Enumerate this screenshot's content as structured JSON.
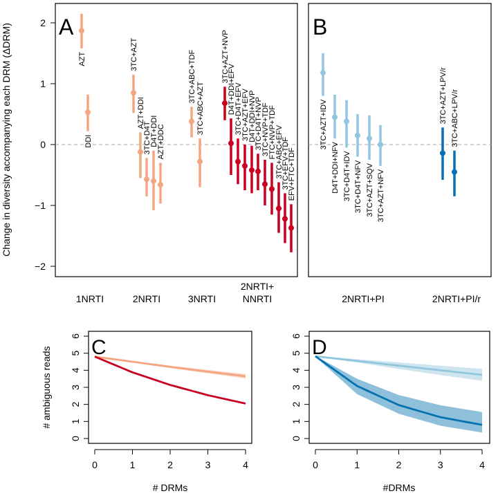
{
  "chart_data": [
    {
      "type": "scatter",
      "panel": "A",
      "ylabel": "Change in diversity accompanying each DRM (ΔDRM)",
      "ylim": [
        -2.2,
        2.25
      ],
      "yticks": [
        -2,
        -1,
        0,
        1,
        2
      ],
      "reference_line": 0,
      "groups": [
        {
          "label": "1NRTI",
          "color": "#f4a582",
          "points": [
            {
              "name": "AZT",
              "y": 1.87,
              "lo": 1.58,
              "hi": 2.15
            },
            {
              "name": "DDI",
              "y": 0.53,
              "lo": 0.22,
              "hi": 0.82
            }
          ]
        },
        {
          "label": "2NRTI",
          "color": "#f4a582",
          "points": [
            {
              "name": "3TC+AZT",
              "y": 0.85,
              "lo": 0.52,
              "hi": 1.15
            },
            {
              "name": "AZT+DDI",
              "y": -0.12,
              "lo": -0.55,
              "hi": 0.2
            },
            {
              "name": "3TC+D4T",
              "y": -0.57,
              "lo": -0.85,
              "hi": -0.22
            },
            {
              "name": "D4T+DDI",
              "y": -0.6,
              "lo": -1.08,
              "hi": -0.1
            },
            {
              "name": "AZT+DDC",
              "y": -0.66,
              "lo": -0.97,
              "hi": -0.3
            }
          ]
        },
        {
          "label": "3NRTI",
          "color": "#f4a582",
          "points": [
            {
              "name": "3TC+ABC+TDF",
              "y": 0.38,
              "lo": 0.12,
              "hi": 0.62
            },
            {
              "name": "3TC+ABC+AZT",
              "y": -0.28,
              "lo": -0.7,
              "hi": 0.1
            }
          ]
        },
        {
          "label": "2NRTI+\nNNRTI",
          "label_lines": [
            "2NRTI+",
            "NNRTI"
          ],
          "color": "#ca0020",
          "points": [
            {
              "name": "3TC+AZT+NVP",
              "y": 0.68,
              "lo": 0.4,
              "hi": 0.95
            },
            {
              "name": "D4T+DDI+EFV",
              "y": 0.02,
              "lo": -0.5,
              "hi": 0.43
            },
            {
              "name": "3TC+D4T+EFV",
              "y": -0.28,
              "lo": -0.65,
              "hi": 0.1
            },
            {
              "name": "3TC+AZT+EFV",
              "y": -0.35,
              "lo": -0.75,
              "hi": 0.0
            },
            {
              "name": "D4T+DDI+NVP",
              "y": -0.42,
              "lo": -0.8,
              "hi": -0.02
            },
            {
              "name": "3TC+D4T+NVP",
              "y": -0.44,
              "lo": -0.75,
              "hi": -0.15
            },
            {
              "name": "3TC+NVP+TDF",
              "y": -0.65,
              "lo": -1.0,
              "hi": -0.25
            },
            {
              "name": "FTC+NVP+TDF",
              "y": -0.73,
              "lo": -1.15,
              "hi": -0.3
            },
            {
              "name": "3TC+ABC+EFV",
              "y": -1.05,
              "lo": -1.45,
              "hi": -0.62
            },
            {
              "name": "3TC+EFV+TDF",
              "y": -1.22,
              "lo": -1.62,
              "hi": -0.8
            },
            {
              "name": "EFV+FTC+TDF",
              "y": -1.37,
              "lo": -1.77,
              "hi": -0.98
            }
          ]
        }
      ]
    },
    {
      "type": "scatter",
      "panel": "B",
      "ylim": [
        -2.2,
        2.25
      ],
      "reference_line": 0,
      "groups": [
        {
          "label": "2NRTI+PI",
          "color": "#92c5de",
          "points": [
            {
              "name": "3TC+AZT+IDV",
              "y": 1.18,
              "lo": 0.8,
              "hi": 1.5
            },
            {
              "name": "D4T+DDI+NFV",
              "y": 0.45,
              "lo": 0.1,
              "hi": 0.82
            },
            {
              "name": "3TC+D4T+IDV",
              "y": 0.38,
              "lo": -0.05,
              "hi": 0.73
            },
            {
              "name": "3TC+D4T+NFV",
              "y": 0.15,
              "lo": -0.2,
              "hi": 0.5
            },
            {
              "name": "3TC+AZT+SQV",
              "y": 0.1,
              "lo": -0.25,
              "hi": 0.48
            },
            {
              "name": "3TC+AZT+NFV",
              "y": 0.0,
              "lo": -0.35,
              "hi": 0.32
            }
          ]
        },
        {
          "label": "2NRTI+PI/r",
          "color": "#0571b0",
          "points": [
            {
              "name": "3TC+AZT+LPV/r",
              "y": -0.14,
              "lo": -0.58,
              "hi": 0.28
            },
            {
              "name": "3TC+ABC+LPV/r",
              "y": -0.45,
              "lo": -0.85,
              "hi": -0.1
            }
          ]
        }
      ]
    },
    {
      "type": "line",
      "panel": "C",
      "xlabel": "# DRMs",
      "ylabel": "# ambiguous reads",
      "xlim": [
        0,
        4
      ],
      "ylim": [
        0,
        6
      ],
      "xticks": [
        0,
        1,
        2,
        3,
        4
      ],
      "yticks": [
        0,
        1,
        2,
        3,
        4,
        5,
        6
      ],
      "series": [
        {
          "color": "#f4a582",
          "x": [
            0,
            1,
            2,
            3,
            4
          ],
          "y": [
            4.8,
            4.5,
            4.2,
            3.92,
            3.65
          ],
          "lo": [
            4.78,
            4.45,
            4.13,
            3.82,
            3.52
          ],
          "hi": [
            4.82,
            4.55,
            4.27,
            4.02,
            3.78
          ]
        },
        {
          "color": "#ca0020",
          "x": [
            0,
            1,
            2,
            3,
            4
          ],
          "y": [
            4.8,
            3.88,
            3.14,
            2.54,
            2.05
          ],
          "lo": [
            4.78,
            3.85,
            3.1,
            2.5,
            2.0
          ],
          "hi": [
            4.82,
            3.91,
            3.18,
            2.58,
            2.1
          ]
        }
      ]
    },
    {
      "type": "line",
      "panel": "D",
      "xlabel": "#DRMs",
      "xlim": [
        0,
        4
      ],
      "ylim": [
        0,
        6
      ],
      "xticks": [
        0,
        1,
        2,
        3,
        4
      ],
      "yticks": [
        0,
        1,
        2,
        3,
        4,
        5,
        6
      ],
      "series": [
        {
          "color": "#92c5de",
          "x": [
            0,
            1,
            2,
            3,
            4
          ],
          "y": [
            4.82,
            4.55,
            4.27,
            4.0,
            3.73
          ],
          "lo": [
            4.8,
            4.45,
            4.08,
            3.72,
            3.38
          ],
          "hi": [
            4.84,
            4.65,
            4.46,
            4.27,
            4.08
          ]
        },
        {
          "color": "#0571b0",
          "x": [
            0,
            1,
            2,
            3,
            4
          ],
          "y": [
            4.82,
            3.08,
            1.96,
            1.25,
            0.8
          ],
          "lo": [
            4.8,
            2.6,
            1.45,
            0.75,
            0.35
          ],
          "hi": [
            4.84,
            3.5,
            2.55,
            1.95,
            1.55
          ]
        }
      ]
    }
  ]
}
